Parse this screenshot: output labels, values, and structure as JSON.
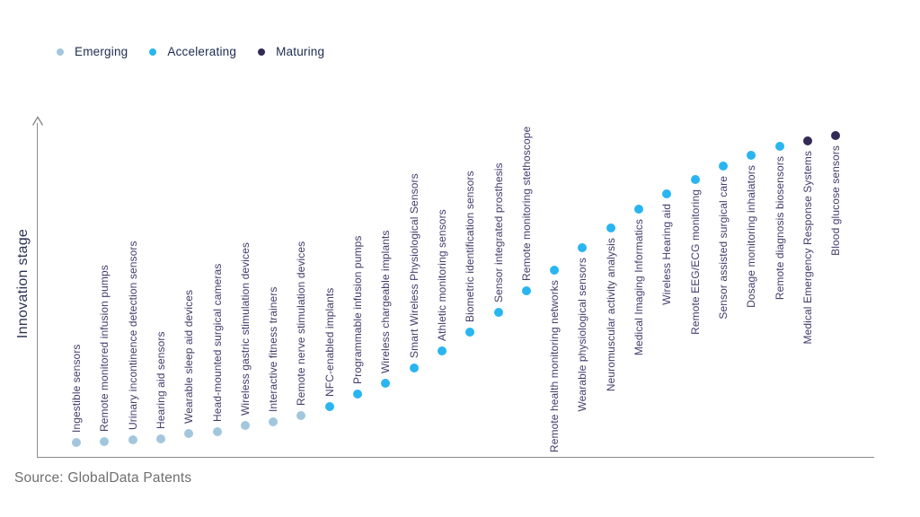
{
  "legend": {
    "items": [
      {
        "label": "Emerging",
        "color": "#a2c7dd"
      },
      {
        "label": "Accelerating",
        "color": "#29b5f0"
      },
      {
        "label": "Maturing",
        "color": "#332a57"
      }
    ]
  },
  "y_axis_label": "Innovation stage",
  "source_note": "Source: GlobalData Patents",
  "colors": {
    "axis": "#8a8a8a",
    "label_text": "#443d6b",
    "legend_text": "#1d2b4f"
  },
  "chart_data": {
    "type": "scatter",
    "title": "",
    "xlabel": "",
    "ylabel": "Innovation stage",
    "grid": false,
    "legend_position": "top-left",
    "legend_entries": [
      "Emerging",
      "Accelerating",
      "Maturing"
    ],
    "stage_colors": {
      "Emerging": "#a2c7dd",
      "Accelerating": "#29b5f0",
      "Maturing": "#332a57"
    },
    "axis_note": "y axis has arrow but no numeric ticks; level is relative innovation stage estimated from dot height above baseline",
    "points": [
      {
        "name": "Ingestible sensors",
        "stage": "Emerging",
        "level": 17
      },
      {
        "name": "Remote monitored infusion pumps",
        "stage": "Emerging",
        "level": 18
      },
      {
        "name": "Urinary incontinence detection sensors",
        "stage": "Emerging",
        "level": 20
      },
      {
        "name": "Hearing aid sensors",
        "stage": "Emerging",
        "level": 21
      },
      {
        "name": "Wearable sleep aid devices",
        "stage": "Emerging",
        "level": 27
      },
      {
        "name": "Head-mounted surgical cameras",
        "stage": "Emerging",
        "level": 29
      },
      {
        "name": "Wireless gastric stimulation devices",
        "stage": "Emerging",
        "level": 36
      },
      {
        "name": "Interactive fitness trainers",
        "stage": "Emerging",
        "level": 40
      },
      {
        "name": "Remote nerve stimulation devices",
        "stage": "Emerging",
        "level": 47
      },
      {
        "name": "NFC-enabled implants",
        "stage": "Accelerating",
        "level": 57
      },
      {
        "name": "Programmable infusion pumps",
        "stage": "Accelerating",
        "level": 71
      },
      {
        "name": "Wireless chargeable implants",
        "stage": "Accelerating",
        "level": 83
      },
      {
        "name": "Smart Wireless Physiological Sensors",
        "stage": "Accelerating",
        "level": 100
      },
      {
        "name": "Athletic monitoring sensors",
        "stage": "Accelerating",
        "level": 119
      },
      {
        "name": "Biometric identification sensors",
        "stage": "Accelerating",
        "level": 140
      },
      {
        "name": "Sensor integrated prosthesis",
        "stage": "Accelerating",
        "level": 162
      },
      {
        "name": "Remote monitoring stethoscope",
        "stage": "Accelerating",
        "level": 186
      },
      {
        "name": "Remote health monitoring networks",
        "stage": "Accelerating",
        "level": 209
      },
      {
        "name": "Wearable physiological sensors",
        "stage": "Accelerating",
        "level": 234
      },
      {
        "name": "Neuromuscular activity analysis",
        "stage": "Accelerating",
        "level": 256
      },
      {
        "name": "Medical Imaging Informatics",
        "stage": "Accelerating",
        "level": 277
      },
      {
        "name": "Wireless Hearing aid",
        "stage": "Accelerating",
        "level": 294
      },
      {
        "name": "Remote EEG/ECG monitoring",
        "stage": "Accelerating",
        "level": 310
      },
      {
        "name": "Sensor assisted surgical care",
        "stage": "Accelerating",
        "level": 325
      },
      {
        "name": "Dosage monitoring inhalators",
        "stage": "Accelerating",
        "level": 337
      },
      {
        "name": "Remote diagnosis biosensors",
        "stage": "Accelerating",
        "level": 347
      },
      {
        "name": "Medical Emergency Response Systems",
        "stage": "Maturing",
        "level": 353
      },
      {
        "name": "Blood glucose sensors",
        "stage": "Maturing",
        "level": 359
      }
    ]
  }
}
